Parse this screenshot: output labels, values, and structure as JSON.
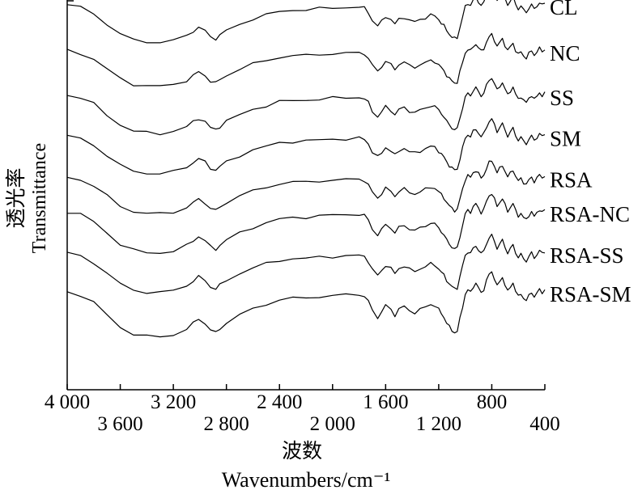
{
  "chart_data": {
    "type": "line",
    "title": "",
    "xlabel": "波数",
    "xlabel_unit": "Wavenumbers/cm⁻¹",
    "ylabel": "透光率",
    "ylabel_en": "Transmittance",
    "xlim": [
      4000,
      400
    ],
    "x_reversed": true,
    "y_ticks_shown": false,
    "grid": false,
    "legend": "inline labels at right end of each curve",
    "x_ticks_upper": [
      "4 000",
      "3 200",
      "2 400",
      "1 600",
      "800"
    ],
    "x_tick_values_upper": [
      4000,
      3200,
      2400,
      1600,
      800
    ],
    "x_ticks_lower": [
      "3 600",
      "2 800",
      "2 000",
      "1 200",
      "400"
    ],
    "x_tick_values_lower": [
      3600,
      2800,
      2000,
      1200,
      400
    ],
    "y_unit": "relative transmittance (stacked, arbitrary)",
    "base_profile": {
      "x": [
        4000,
        3900,
        3800,
        3700,
        3600,
        3500,
        3400,
        3300,
        3200,
        3100,
        3050,
        3010,
        2960,
        2920,
        2880,
        2850,
        2800,
        2700,
        2600,
        2500,
        2400,
        2300,
        2200,
        2100,
        2000,
        1900,
        1800,
        1760,
        1730,
        1700,
        1660,
        1630,
        1600,
        1560,
        1530,
        1500,
        1460,
        1420,
        1380,
        1340,
        1300,
        1260,
        1230,
        1200,
        1180,
        1160,
        1140,
        1120,
        1100,
        1080,
        1060,
        1040,
        1020,
        1000,
        980,
        960,
        940,
        920,
        900,
        880,
        860,
        840,
        820,
        800,
        780,
        760,
        740,
        720,
        700,
        680,
        660,
        640,
        620,
        600,
        580,
        560,
        540,
        520,
        500,
        480,
        460,
        440,
        420,
        400
      ],
      "y": [
        0.95,
        0.89,
        0.75,
        0.52,
        0.3,
        0.17,
        0.13,
        0.12,
        0.16,
        0.26,
        0.37,
        0.45,
        0.37,
        0.24,
        0.2,
        0.27,
        0.38,
        0.52,
        0.64,
        0.72,
        0.8,
        0.83,
        0.84,
        0.86,
        0.88,
        0.89,
        0.9,
        0.87,
        0.78,
        0.6,
        0.48,
        0.58,
        0.7,
        0.62,
        0.52,
        0.63,
        0.68,
        0.6,
        0.57,
        0.62,
        0.67,
        0.72,
        0.7,
        0.62,
        0.55,
        0.48,
        0.38,
        0.3,
        0.24,
        0.2,
        0.22,
        0.45,
        0.68,
        0.9,
        0.98,
        0.94,
        1.05,
        1.1,
        1.02,
        0.93,
        1.0,
        1.15,
        1.27,
        1.32,
        1.2,
        1.05,
        1.14,
        1.22,
        1.08,
        0.95,
        1.04,
        1.12,
        0.96,
        0.86,
        0.92,
        0.83,
        0.78,
        0.88,
        0.95,
        0.85,
        0.92,
        1.0,
        0.94,
        0.98
      ]
    },
    "series": [
      {
        "name": "CL",
        "offset": 7.0,
        "spread": 1.0
      },
      {
        "name": "NC",
        "offset": 6.0,
        "spread": 0.95
      },
      {
        "name": "SS",
        "offset": 5.0,
        "spread": 1.02
      },
      {
        "name": "SM",
        "offset": 4.1,
        "spread": 1.0
      },
      {
        "name": "RSA",
        "offset": 3.2,
        "spread": 0.98
      },
      {
        "name": "RSA-NC",
        "offset": 2.4,
        "spread": 1.1
      },
      {
        "name": "RSA-SS",
        "offset": 1.5,
        "spread": 1.05
      },
      {
        "name": "RSA-SM",
        "offset": 0.6,
        "spread": 1.2
      }
    ]
  }
}
